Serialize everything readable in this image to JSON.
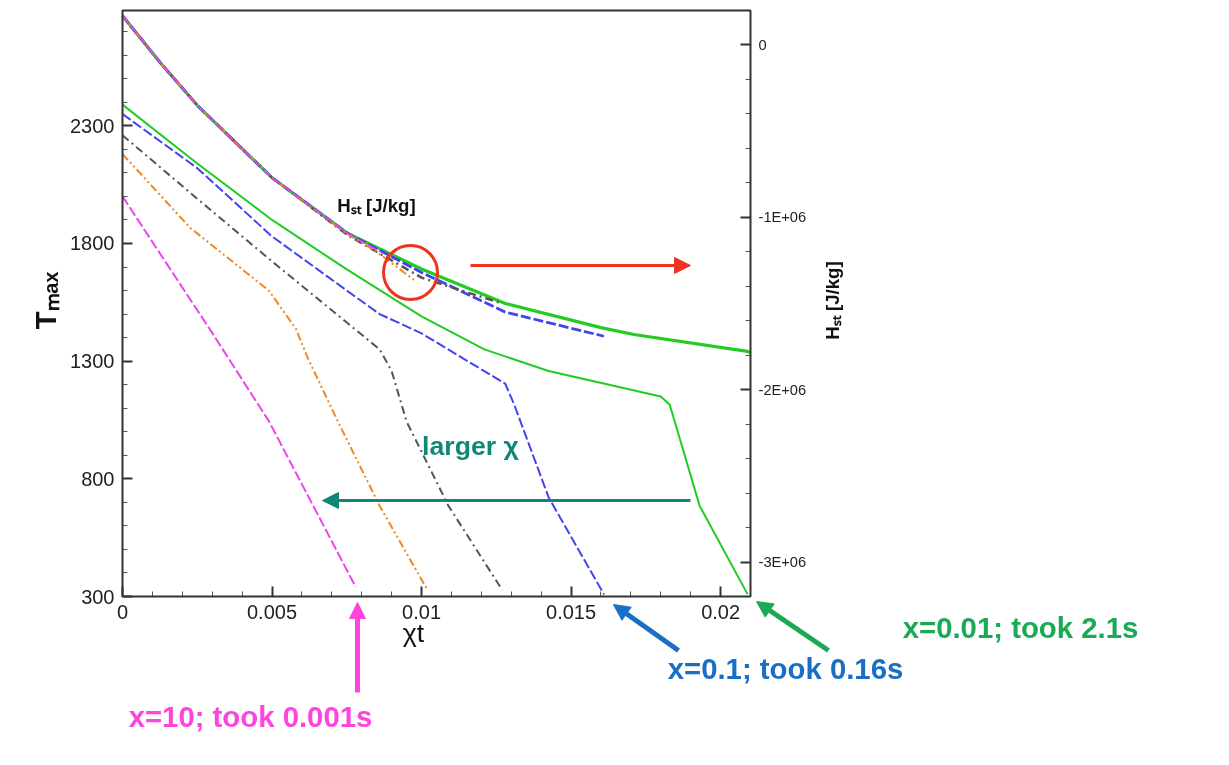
{
  "chart_data": {
    "type": "line",
    "xlabel": "χt",
    "ylabel": "Tₘₐₓ",
    "y2label": "Hₛₜ [J/kg]",
    "xlim": [
      0,
      0.021
    ],
    "ylim": [
      300,
      2790
    ],
    "y2lim": [
      -3200000,
      200000
    ],
    "xticks": [
      0,
      {
        "value": 0.001,
        "label": null
      },
      {
        "value": 0.002,
        "label": null
      },
      {
        "value": 0.003,
        "label": null
      },
      {
        "value": 0.004,
        "label": null
      },
      0.005,
      {
        "value": 0.006,
        "label": null
      },
      {
        "value": 0.007,
        "label": null
      },
      {
        "value": 0.008,
        "label": null
      },
      {
        "value": 0.009,
        "label": null
      },
      0.01,
      {
        "value": 0.011,
        "label": null
      },
      {
        "value": 0.012,
        "label": null
      },
      {
        "value": 0.013,
        "label": null
      },
      {
        "value": 0.014,
        "label": null
      },
      0.015,
      {
        "value": 0.016,
        "label": null
      },
      {
        "value": 0.017,
        "label": null
      },
      {
        "value": 0.018,
        "label": null
      },
      {
        "value": 0.019,
        "label": null
      },
      0.02
    ],
    "yticks": [
      300,
      {
        "value": 400,
        "label": null
      },
      {
        "value": 500,
        "label": null
      },
      {
        "value": 600,
        "label": null
      },
      {
        "value": 700,
        "label": null
      },
      800,
      {
        "value": 900,
        "label": null
      },
      {
        "value": 1000,
        "label": null
      },
      {
        "value": 1100,
        "label": null
      },
      {
        "value": 1200,
        "label": null
      },
      1300,
      {
        "value": 1400,
        "label": null
      },
      {
        "value": 1500,
        "label": null
      },
      {
        "value": 1600,
        "label": null
      },
      {
        "value": 1700,
        "label": null
      },
      1800,
      {
        "value": 1900,
        "label": null
      },
      {
        "value": 2000,
        "label": null
      },
      {
        "value": 2100,
        "label": null
      },
      {
        "value": 2200,
        "label": null
      },
      2300,
      {
        "value": 2400,
        "label": null
      },
      {
        "value": 2500,
        "label": null
      },
      {
        "value": 2600,
        "label": null
      },
      {
        "value": 2700,
        "label": null
      }
    ],
    "y2ticks": [
      {
        "value": -3000000,
        "label": "-3E+06"
      },
      {
        "value": -2800000,
        "label": null
      },
      {
        "value": -2600000,
        "label": null
      },
      {
        "value": -2400000,
        "label": null
      },
      {
        "value": -2200000,
        "label": null
      },
      {
        "value": -2000000,
        "label": "-2E+06"
      },
      {
        "value": -1800000,
        "label": null
      },
      {
        "value": -1600000,
        "label": null
      },
      {
        "value": -1400000,
        "label": null
      },
      {
        "value": -1200000,
        "label": null
      },
      {
        "value": -1000000,
        "label": "-1E+06"
      },
      {
        "value": -800000,
        "label": null
      },
      {
        "value": -600000,
        "label": null
      },
      {
        "value": -400000,
        "label": null
      },
      {
        "value": -200000,
        "label": null
      },
      {
        "value": 0,
        "label": "0"
      }
    ],
    "grid": false,
    "series": [
      {
        "color": "#ee44ee",
        "line_style": "dashed",
        "x": [
          0,
          0.003,
          0.0049,
          0.0078
        ],
        "values": [
          2000,
          1420,
          1044,
          340
        ]
      },
      {
        "color": "#ee8822",
        "line_style": "dashdotdot",
        "x": [
          0,
          0.00226,
          0.0049,
          0.0058,
          0.0062,
          0.0072,
          0.0086,
          0.0102
        ],
        "values": [
          2180,
          1867,
          1599,
          1437,
          1312,
          1044,
          685,
          327
        ]
      },
      {
        "color": "#555555",
        "line_style": "dashdot",
        "x": [
          0,
          0.0025,
          0.005,
          0.0075,
          0.0086,
          0.009,
          0.0095,
          0.0109,
          0.0127
        ],
        "values": [
          2260,
          1990,
          1724,
          1464,
          1350,
          1258,
          1043,
          685,
          327
        ]
      },
      {
        "color": "#4444ee",
        "line_style": "dashed",
        "x": [
          0,
          0.0025,
          0.005,
          0.0075,
          0.0086,
          0.01,
          0.0128,
          0.0131,
          0.01425,
          0.0161
        ],
        "values": [
          2350,
          2120,
          1830,
          1600,
          1500,
          1418,
          1204,
          1115,
          721,
          309
        ]
      },
      {
        "color": "#22cc22",
        "line_style": "solid",
        "x": [
          0,
          0.0025,
          0.005,
          0.0075,
          0.01,
          0.0121,
          0.01425,
          0.018,
          0.0183,
          0.0193,
          0.0209
        ],
        "values": [
          2390,
          2140,
          1900,
          1690,
          1490,
          1350,
          1258,
          1150,
          1115,
          685,
          310
        ]
      },
      {
        "color": "#ee44ee",
        "line_style": "dashed",
        "axis": "y2",
        "x": [
          0,
          0.00125,
          0.0025,
          0.005,
          0.0075,
          0.0085
        ],
        "values": [
          170000,
          -100000,
          -350000,
          -770000,
          -1090000,
          -1190000
        ]
      },
      {
        "color": "#ee8822",
        "line_style": "dashdotdot",
        "axis": "y2",
        "x": [
          0,
          0.00125,
          0.0025,
          0.005,
          0.0075,
          0.0085,
          0.0098
        ],
        "values": [
          170000,
          -100000,
          -350000,
          -770000,
          -1095000,
          -1200000,
          -1370000
        ]
      },
      {
        "color": "#555555",
        "line_style": "dashdot",
        "axis": "y2",
        "x": [
          0,
          0.00125,
          0.0025,
          0.005,
          0.0075,
          0.01,
          0.0127
        ],
        "values": [
          170000,
          -100000,
          -350000,
          -770000,
          -1100000,
          -1350000,
          -1500000
        ]
      },
      {
        "color": "#4444ee",
        "line_style": "dashed",
        "axis": "y2",
        "x": [
          0,
          0.00125,
          0.0025,
          0.005,
          0.0075,
          0.01,
          0.0128,
          0.0161
        ],
        "values": [
          170000,
          -100000,
          -350000,
          -770000,
          -1090000,
          -1320000,
          -1550000,
          -1690000
        ]
      },
      {
        "color": "#22cc22",
        "line_style": "solid",
        "axis": "y2",
        "x": [
          0,
          0.00125,
          0.0025,
          0.005,
          0.0075,
          0.01,
          0.0128,
          0.016,
          0.0171,
          0.0209,
          0.021
        ],
        "values": [
          170000,
          -100000,
          -350000,
          -770000,
          -1090000,
          -1300000,
          -1500000,
          -1640000,
          -1680000,
          -1778000,
          -1785000
        ]
      }
    ],
    "annotations": [
      "Hₛₜ [J/kg]",
      "larger χ",
      "x=10; took 0.001s",
      "x=0.1; took 0.16s",
      "x=0.01; took 2.1s"
    ]
  }
}
